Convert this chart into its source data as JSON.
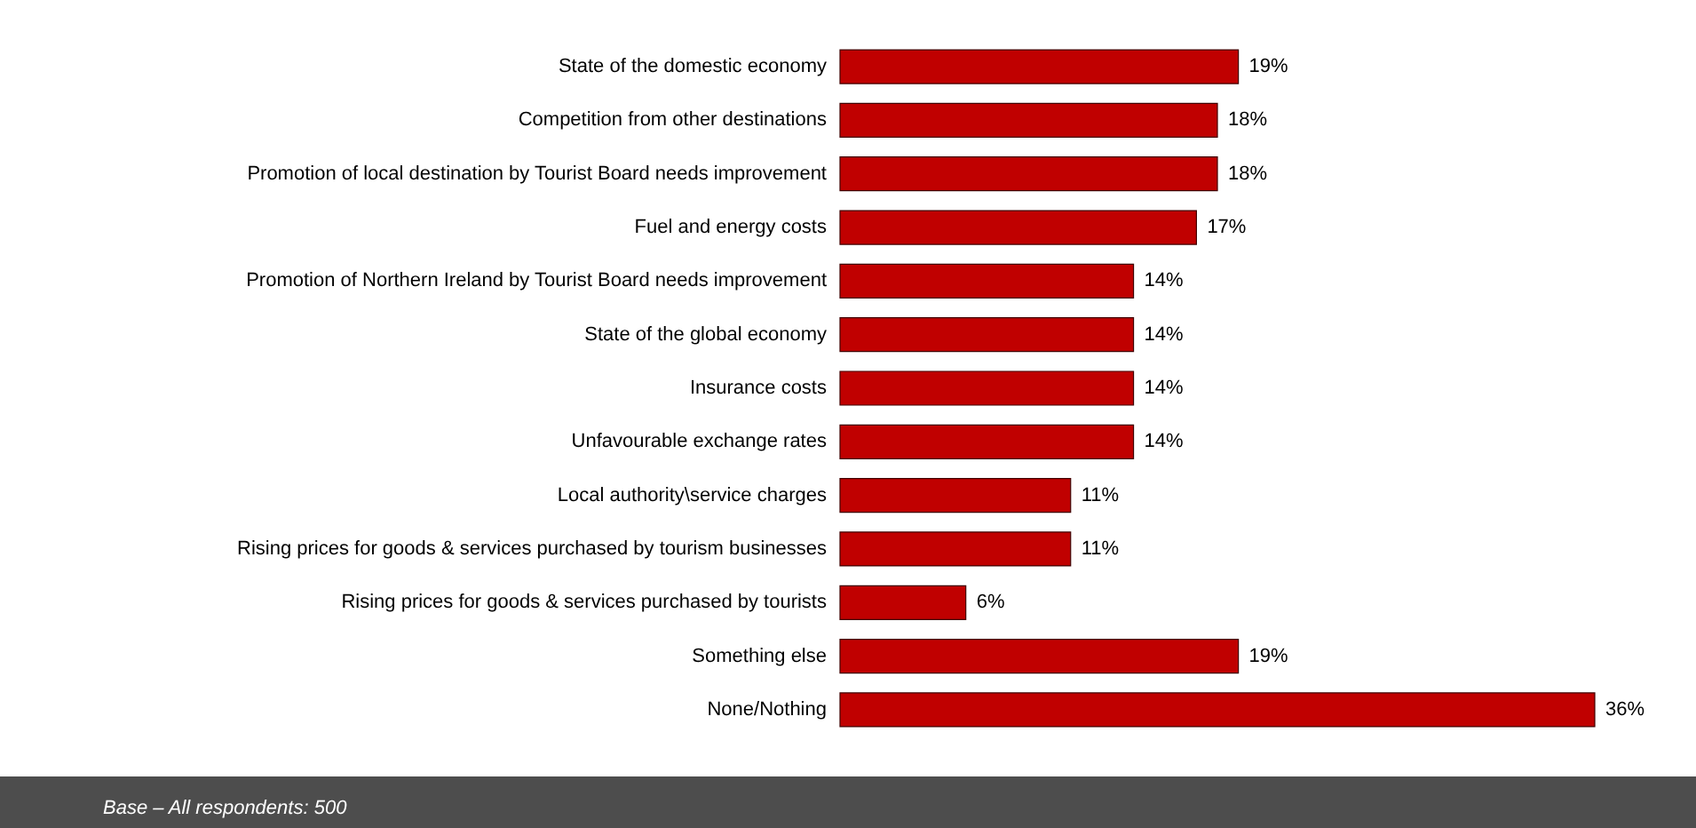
{
  "chart_data": {
    "type": "bar",
    "orientation": "horizontal",
    "categories": [
      "State of the domestic economy",
      "Competition from other destinations",
      "Promotion of local destination by Tourist Board needs improvement",
      "Fuel and energy costs",
      "Promotion of Northern Ireland by Tourist Board needs improvement",
      "State of the global economy",
      "Insurance costs",
      "Unfavourable exchange rates",
      "Local authority\\service charges",
      "Rising prices for goods & services purchased by tourism businesses",
      "Rising prices for goods & services purchased by tourists",
      "Something else",
      "None/Nothing"
    ],
    "values": [
      19,
      18,
      18,
      17,
      14,
      14,
      14,
      14,
      11,
      11,
      6,
      19,
      36
    ],
    "value_labels": [
      "19%",
      "18%",
      "18%",
      "17%",
      "14%",
      "14%",
      "14%",
      "14%",
      "11%",
      "11%",
      "6%",
      "19%",
      "36%"
    ],
    "color": "#c00000",
    "annotations": [
      "Base – All respondents: 500"
    ]
  }
}
